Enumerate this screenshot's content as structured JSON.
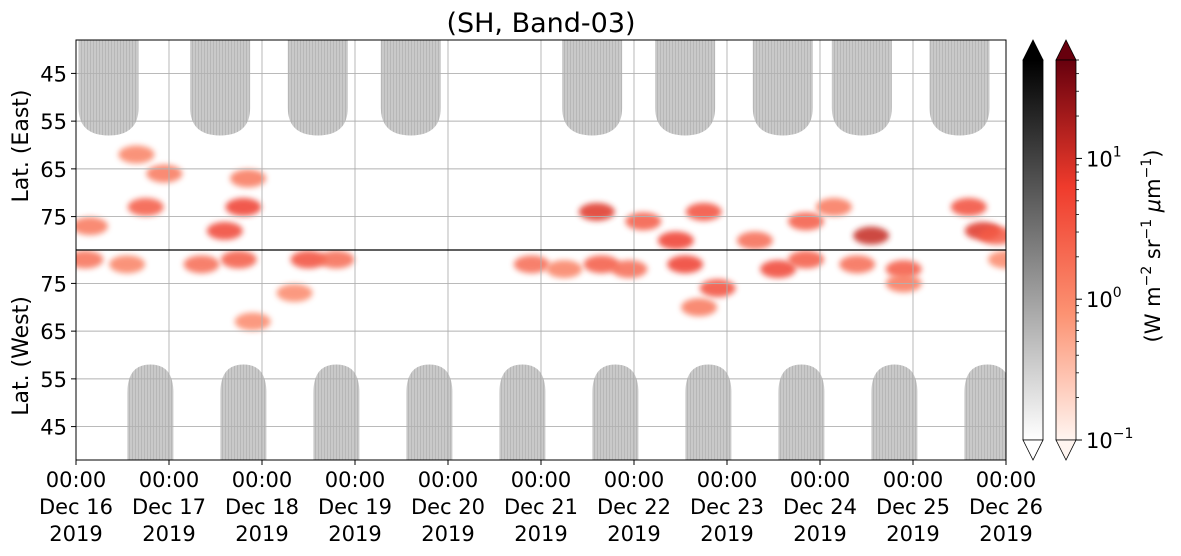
{
  "chart_data": {
    "type": "heatmap",
    "title": "(SH, Band-03)",
    "panels": [
      {
        "ylabel": "Lat. (East)",
        "yticks": [
          45,
          55,
          65,
          75
        ],
        "ylim": [
          38,
          82
        ]
      },
      {
        "ylabel": "Lat. (West)",
        "yticks": [
          75,
          65,
          55,
          45
        ],
        "ylim": [
          82,
          38
        ]
      }
    ],
    "x_ticks": [
      {
        "time": "00:00",
        "date": "Dec 16",
        "year": "2019"
      },
      {
        "time": "00:00",
        "date": "Dec 17",
        "year": "2019"
      },
      {
        "time": "00:00",
        "date": "Dec 18",
        "year": "2019"
      },
      {
        "time": "00:00",
        "date": "Dec 19",
        "year": "2019"
      },
      {
        "time": "00:00",
        "date": "Dec 20",
        "year": "2019"
      },
      {
        "time": "00:00",
        "date": "Dec 21",
        "year": "2019"
      },
      {
        "time": "00:00",
        "date": "Dec 22",
        "year": "2019"
      },
      {
        "time": "00:00",
        "date": "Dec 23",
        "year": "2019"
      },
      {
        "time": "00:00",
        "date": "Dec 24",
        "year": "2019"
      },
      {
        "time": "00:00",
        "date": "Dec 25",
        "year": "2019"
      },
      {
        "time": "00:00",
        "date": "Dec 26",
        "year": "2019"
      }
    ],
    "xlim_days": [
      "Dec 16 2019",
      "Dec 26 2019"
    ],
    "grid": true,
    "colorbars": [
      {
        "name": "gray",
        "colors": [
          "#ffffff",
          "#000000"
        ],
        "extend": "both"
      },
      {
        "name": "reds",
        "colors": [
          "#fff5f0",
          "#fc9272",
          "#ef3b2c",
          "#67000d"
        ],
        "extend": "both",
        "scale": "log",
        "ticks": [
          {
            "base": "10",
            "exp": "−1",
            "value": 0.1
          },
          {
            "base": "10",
            "exp": "0",
            "value": 1
          },
          {
            "base": "10",
            "exp": "1",
            "value": 10
          }
        ],
        "range": [
          0.1,
          50
        ]
      }
    ],
    "colorbar_label": {
      "pre": "(W m",
      "e1": "−2",
      "mid": " sr",
      "e2": "−1",
      "mid2": " ",
      "mu": "μ",
      "m": "m",
      "e3": "−1",
      "post": ")"
    },
    "gray_shadows": {
      "east_centers": [
        16.35,
        17.55,
        18.6,
        19.6,
        21.55,
        22.55,
        23.6,
        24.45,
        25.5
      ],
      "west_centers": [
        16.8,
        17.8,
        18.8,
        19.8,
        20.8,
        21.8,
        22.8,
        23.8,
        24.8,
        25.8
      ],
      "lat_extent": [
        40,
        58
      ]
    },
    "emission_blobs": [
      {
        "day": 16.65,
        "lat": 62,
        "hemi": "east",
        "v": 1.2
      },
      {
        "day": 16.75,
        "lat": 73,
        "hemi": "east",
        "v": 3
      },
      {
        "day": 16.95,
        "lat": 66,
        "hemi": "east",
        "v": 1.5
      },
      {
        "day": 16.15,
        "lat": 77,
        "hemi": "east",
        "v": 1.5
      },
      {
        "day": 16.1,
        "lat": 80,
        "hemi": "west",
        "v": 1.8
      },
      {
        "day": 16.55,
        "lat": 79,
        "hemi": "west",
        "v": 1.2
      },
      {
        "day": 17.6,
        "lat": 78,
        "hemi": "east",
        "v": 5
      },
      {
        "day": 17.75,
        "lat": 80,
        "hemi": "west",
        "v": 3
      },
      {
        "day": 17.35,
        "lat": 79,
        "hemi": "west",
        "v": 2
      },
      {
        "day": 17.8,
        "lat": 73,
        "hemi": "east",
        "v": 6
      },
      {
        "day": 17.85,
        "lat": 67,
        "hemi": "east",
        "v": 1.5
      },
      {
        "day": 18.5,
        "lat": 80,
        "hemi": "west",
        "v": 4
      },
      {
        "day": 18.8,
        "lat": 80,
        "hemi": "west",
        "v": 2
      },
      {
        "day": 18.35,
        "lat": 73,
        "hemi": "west",
        "v": 1
      },
      {
        "day": 17.9,
        "lat": 67,
        "hemi": "west",
        "v": 1
      },
      {
        "day": 20.9,
        "lat": 79,
        "hemi": "west",
        "v": 2
      },
      {
        "day": 21.25,
        "lat": 78,
        "hemi": "west",
        "v": 1.2
      },
      {
        "day": 21.6,
        "lat": 74,
        "hemi": "east",
        "v": 8
      },
      {
        "day": 21.65,
        "lat": 79,
        "hemi": "west",
        "v": 3
      },
      {
        "day": 21.95,
        "lat": 78,
        "hemi": "west",
        "v": 2
      },
      {
        "day": 22.1,
        "lat": 76,
        "hemi": "east",
        "v": 3
      },
      {
        "day": 22.45,
        "lat": 80,
        "hemi": "east",
        "v": 6
      },
      {
        "day": 22.55,
        "lat": 79,
        "hemi": "west",
        "v": 6
      },
      {
        "day": 22.75,
        "lat": 74,
        "hemi": "east",
        "v": 4
      },
      {
        "day": 22.9,
        "lat": 74,
        "hemi": "west",
        "v": 4
      },
      {
        "day": 22.7,
        "lat": 70,
        "hemi": "west",
        "v": 1.5
      },
      {
        "day": 23.3,
        "lat": 80,
        "hemi": "east",
        "v": 2
      },
      {
        "day": 23.55,
        "lat": 78,
        "hemi": "west",
        "v": 5
      },
      {
        "day": 23.85,
        "lat": 80,
        "hemi": "west",
        "v": 3
      },
      {
        "day": 23.85,
        "lat": 76,
        "hemi": "east",
        "v": 3
      },
      {
        "day": 24.15,
        "lat": 73,
        "hemi": "east",
        "v": 1.5
      },
      {
        "day": 24.55,
        "lat": 79,
        "hemi": "east",
        "v": 12
      },
      {
        "day": 24.4,
        "lat": 79,
        "hemi": "west",
        "v": 2
      },
      {
        "day": 24.9,
        "lat": 78,
        "hemi": "west",
        "v": 3
      },
      {
        "day": 24.9,
        "lat": 75,
        "hemi": "west",
        "v": 1.5
      },
      {
        "day": 25.6,
        "lat": 73,
        "hemi": "east",
        "v": 4
      },
      {
        "day": 25.75,
        "lat": 78,
        "hemi": "east",
        "v": 8
      },
      {
        "day": 25.9,
        "lat": 79,
        "hemi": "east",
        "v": 3
      },
      {
        "day": 26.0,
        "lat": 80,
        "hemi": "west",
        "v": 1
      }
    ]
  }
}
